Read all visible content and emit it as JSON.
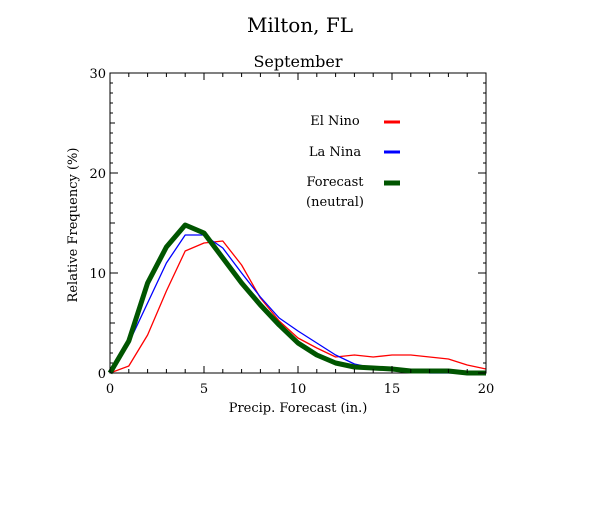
{
  "chart_data": {
    "type": "line",
    "title": "Milton, FL",
    "subtitle": "September",
    "xlabel": "Precip. Forecast (in.)",
    "ylabel": "Relative Frequency (%)",
    "xlim": [
      0,
      20
    ],
    "ylim": [
      0,
      30
    ],
    "xticks": [
      0,
      5,
      10,
      15,
      20
    ],
    "yticks": [
      0,
      10,
      20,
      30
    ],
    "grid": false,
    "legend_position": "top-right",
    "legend": {
      "el_nino": "El Nino",
      "la_nina": "La Nina",
      "forecast_line1": "Forecast",
      "forecast_line2": "(neutral)"
    },
    "x": [
      0,
      1,
      2,
      3,
      4,
      5,
      6,
      7,
      8,
      9,
      10,
      11,
      12,
      13,
      14,
      15,
      16,
      17,
      18,
      19,
      20
    ],
    "series": [
      {
        "name": "El Nino",
        "color": "#ff0000",
        "values": [
          0.0,
          0.7,
          3.8,
          8.2,
          12.2,
          13.0,
          13.2,
          10.8,
          7.5,
          5.2,
          3.5,
          2.5,
          1.6,
          1.8,
          1.6,
          1.8,
          1.8,
          1.6,
          1.4,
          0.8,
          0.4
        ]
      },
      {
        "name": "La Nina",
        "color": "#0000ff",
        "values": [
          0.0,
          3.0,
          7.0,
          11.0,
          13.8,
          13.8,
          12.5,
          10.0,
          7.6,
          5.5,
          4.2,
          3.0,
          1.8,
          0.9,
          0.5,
          0.4,
          0.2,
          0.0,
          0.0,
          0.0,
          0.0
        ]
      },
      {
        "name": "Forecast (neutral)",
        "color": "#005500",
        "values": [
          0.0,
          3.2,
          9.0,
          12.6,
          14.8,
          14.0,
          11.5,
          9.0,
          6.8,
          4.8,
          3.0,
          1.8,
          1.0,
          0.6,
          0.5,
          0.4,
          0.2,
          0.2,
          0.2,
          0.0,
          0.0
        ]
      }
    ]
  }
}
